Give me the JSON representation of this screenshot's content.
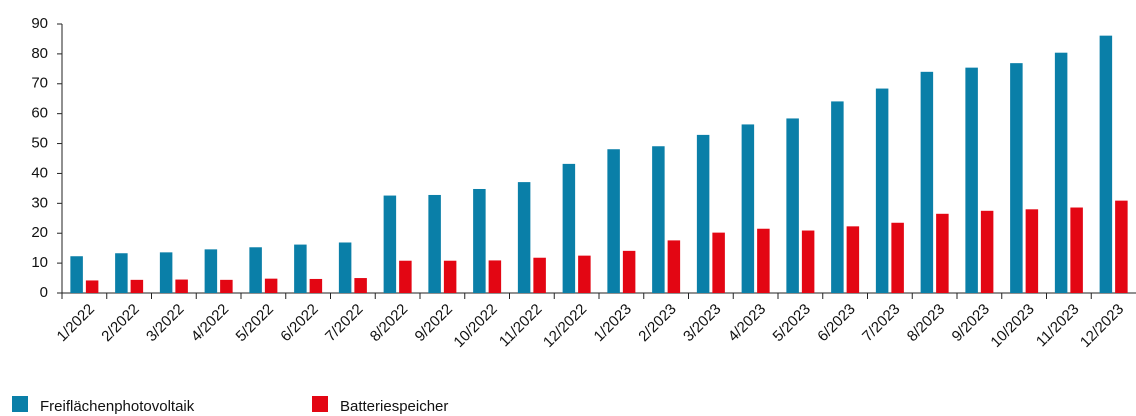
{
  "chart_data": {
    "type": "bar",
    "categories": [
      "1/2022",
      "2/2022",
      "3/2022",
      "4/2022",
      "5/2022",
      "6/2022",
      "7/2022",
      "8/2022",
      "9/2022",
      "10/2022",
      "11/2022",
      "12/2022",
      "1/2023",
      "2/2023",
      "3/2023",
      "4/2023",
      "5/2023",
      "6/2023",
      "7/2023",
      "8/2023",
      "9/2023",
      "10/2023",
      "11/2023",
      "12/2023"
    ],
    "series": [
      {
        "name": "Freiflächenphotovoltaik",
        "color": "#0a7fa8",
        "values": [
          12.3,
          13.3,
          13.6,
          14.6,
          15.3,
          16.2,
          16.9,
          32.6,
          32.8,
          34.8,
          37.1,
          43.2,
          48.1,
          49.1,
          52.9,
          56.4,
          58.4,
          64.1,
          68.4,
          74.0,
          75.4,
          76.9,
          80.4,
          86.1
        ]
      },
      {
        "name": "Batteriespeicher",
        "color": "#e30613",
        "values": [
          4.2,
          4.4,
          4.5,
          4.4,
          4.8,
          4.7,
          5.0,
          10.8,
          10.8,
          10.9,
          11.8,
          12.5,
          14.1,
          17.6,
          20.2,
          21.5,
          20.9,
          22.3,
          23.5,
          26.5,
          27.5,
          28.0,
          28.6,
          30.9
        ]
      }
    ],
    "ylim": [
      0,
      90
    ],
    "yticks": [
      0,
      10,
      20,
      30,
      40,
      50,
      60,
      70,
      80,
      90
    ],
    "grid": false
  }
}
